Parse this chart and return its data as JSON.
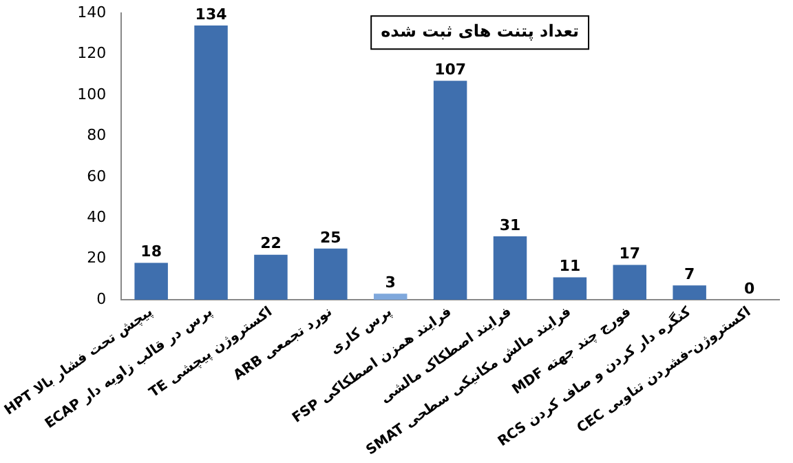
{
  "chart_data": {
    "type": "bar",
    "title": "تعداد پتنت های ثبت شده",
    "categories": [
      "پیچش تحت فشار بالا HPT",
      "پرس در قالب زاویه دار ECAP",
      "اکستروژن پیچشی TE",
      "نورد تجمعی ARB",
      "پرس کاری",
      "فرایند همزن اصطکاکی FSP",
      "فرایند اصطکاک مالشی",
      "فرایند مالش مکانیکی سطحی SMAT",
      "فورج چند جهته MDF",
      "کنگره دار کردن و صاف کردن RCS",
      "اکستروژن-فشردن تناوبی CEC"
    ],
    "values": [
      18,
      134,
      22,
      25,
      3,
      107,
      31,
      11,
      17,
      7,
      0
    ],
    "colors": [
      "#3f6fae",
      "#3f6fae",
      "#3f6fae",
      "#3f6fae",
      "#7fa8dc",
      "#3f6fae",
      "#3f6fae",
      "#3f6fae",
      "#3f6fae",
      "#3f6fae",
      "#3f6fae"
    ],
    "ylim": [
      0,
      140
    ],
    "yticks": [
      0,
      20,
      40,
      60,
      80,
      100,
      120,
      140
    ],
    "grid": false,
    "data_labels": true,
    "legend": false
  }
}
